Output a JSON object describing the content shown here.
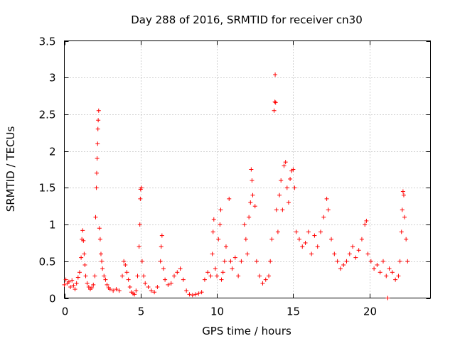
{
  "chart_data": {
    "type": "scatter",
    "title": "Day 288 of 2016, SRMTID for receiver cn30",
    "xlabel": "GPS time / hours",
    "ylabel": "SRMTID / TECUs",
    "xlim": [
      0,
      24
    ],
    "ylim": [
      0,
      3.5
    ],
    "x_ticks": [
      0,
      5,
      10,
      15,
      20
    ],
    "x_tick_labels": [
      "0",
      "5",
      "10",
      "15",
      "20"
    ],
    "y_ticks": [
      0,
      0.5,
      1,
      1.5,
      2,
      2.5,
      3,
      3.5
    ],
    "y_tick_labels": [
      "0",
      "0.5",
      "1",
      "1.5",
      "2",
      "2.5",
      "3",
      "3.5"
    ],
    "grid": true,
    "marker": "+",
    "series": [
      {
        "name": "SRMTID",
        "color": "#ff0000",
        "points": [
          [
            0.0,
            0.18
          ],
          [
            0.1,
            0.25
          ],
          [
            0.2,
            0.2
          ],
          [
            0.3,
            0.22
          ],
          [
            0.4,
            0.15
          ],
          [
            0.5,
            0.24
          ],
          [
            0.6,
            0.17
          ],
          [
            0.7,
            0.12
          ],
          [
            0.8,
            0.2
          ],
          [
            0.9,
            0.28
          ],
          [
            1.0,
            0.35
          ],
          [
            1.1,
            0.55
          ],
          [
            1.15,
            0.8
          ],
          [
            1.2,
            0.92
          ],
          [
            1.25,
            0.78
          ],
          [
            1.3,
            0.6
          ],
          [
            1.35,
            0.45
          ],
          [
            1.4,
            0.3
          ],
          [
            1.5,
            0.2
          ],
          [
            1.6,
            0.15
          ],
          [
            1.7,
            0.12
          ],
          [
            1.8,
            0.14
          ],
          [
            1.9,
            0.18
          ],
          [
            2.0,
            0.3
          ],
          [
            2.05,
            1.1
          ],
          [
            2.1,
            1.5
          ],
          [
            2.12,
            1.7
          ],
          [
            2.15,
            1.9
          ],
          [
            2.18,
            2.1
          ],
          [
            2.2,
            2.3
          ],
          [
            2.22,
            2.42
          ],
          [
            2.25,
            2.55
          ],
          [
            2.3,
            0.95
          ],
          [
            2.35,
            0.8
          ],
          [
            2.4,
            0.6
          ],
          [
            2.45,
            0.5
          ],
          [
            2.5,
            0.4
          ],
          [
            2.6,
            0.3
          ],
          [
            2.7,
            0.25
          ],
          [
            2.8,
            0.18
          ],
          [
            2.9,
            0.14
          ],
          [
            3.0,
            0.12
          ],
          [
            3.2,
            0.1
          ],
          [
            3.4,
            0.12
          ],
          [
            3.6,
            0.1
          ],
          [
            3.8,
            0.3
          ],
          [
            3.9,
            0.5
          ],
          [
            4.0,
            0.45
          ],
          [
            4.1,
            0.35
          ],
          [
            4.2,
            0.25
          ],
          [
            4.3,
            0.15
          ],
          [
            4.4,
            0.08
          ],
          [
            4.5,
            0.06
          ],
          [
            4.6,
            0.05
          ],
          [
            4.7,
            0.1
          ],
          [
            4.8,
            0.3
          ],
          [
            4.9,
            0.7
          ],
          [
            4.95,
            1.0
          ],
          [
            4.98,
            1.35
          ],
          [
            5.0,
            1.48
          ],
          [
            5.05,
            1.5
          ],
          [
            5.1,
            0.5
          ],
          [
            5.2,
            0.3
          ],
          [
            5.3,
            0.2
          ],
          [
            5.5,
            0.15
          ],
          [
            5.7,
            0.1
          ],
          [
            5.9,
            0.08
          ],
          [
            6.1,
            0.15
          ],
          [
            6.3,
            0.5
          ],
          [
            6.35,
            0.7
          ],
          [
            6.4,
            0.85
          ],
          [
            6.5,
            0.4
          ],
          [
            6.6,
            0.25
          ],
          [
            6.8,
            0.18
          ],
          [
            7.0,
            0.2
          ],
          [
            7.2,
            0.3
          ],
          [
            7.4,
            0.35
          ],
          [
            7.6,
            0.4
          ],
          [
            7.8,
            0.25
          ],
          [
            8.0,
            0.1
          ],
          [
            8.2,
            0.05
          ],
          [
            8.4,
            0.04
          ],
          [
            8.6,
            0.05
          ],
          [
            8.8,
            0.06
          ],
          [
            9.0,
            0.08
          ],
          [
            9.2,
            0.25
          ],
          [
            9.4,
            0.35
          ],
          [
            9.6,
            0.3
          ],
          [
            9.7,
            0.6
          ],
          [
            9.75,
            0.9
          ],
          [
            9.8,
            1.07
          ],
          [
            9.9,
            0.4
          ],
          [
            10.0,
            0.3
          ],
          [
            10.1,
            0.8
          ],
          [
            10.2,
            1.0
          ],
          [
            10.25,
            1.2
          ],
          [
            10.3,
            0.25
          ],
          [
            10.4,
            0.35
          ],
          [
            10.5,
            0.5
          ],
          [
            10.6,
            0.7
          ],
          [
            10.8,
            1.35
          ],
          [
            10.9,
            0.5
          ],
          [
            11.0,
            0.4
          ],
          [
            11.2,
            0.55
          ],
          [
            11.4,
            0.3
          ],
          [
            11.6,
            0.5
          ],
          [
            11.8,
            1.0
          ],
          [
            11.9,
            0.8
          ],
          [
            12.0,
            0.6
          ],
          [
            12.1,
            1.1
          ],
          [
            12.2,
            1.3
          ],
          [
            12.25,
            1.75
          ],
          [
            12.3,
            1.6
          ],
          [
            12.35,
            1.4
          ],
          [
            12.5,
            1.25
          ],
          [
            12.6,
            0.5
          ],
          [
            12.8,
            0.3
          ],
          [
            13.0,
            0.2
          ],
          [
            13.2,
            0.25
          ],
          [
            13.4,
            0.3
          ],
          [
            13.5,
            0.5
          ],
          [
            13.6,
            0.8
          ],
          [
            13.75,
            2.55
          ],
          [
            13.8,
            2.67
          ],
          [
            13.82,
            3.04
          ],
          [
            13.85,
            2.66
          ],
          [
            13.9,
            1.2
          ],
          [
            14.0,
            0.9
          ],
          [
            14.1,
            1.4
          ],
          [
            14.2,
            1.6
          ],
          [
            14.3,
            1.2
          ],
          [
            14.4,
            1.8
          ],
          [
            14.5,
            1.85
          ],
          [
            14.6,
            1.5
          ],
          [
            14.7,
            1.3
          ],
          [
            14.8,
            1.62
          ],
          [
            14.9,
            1.73
          ],
          [
            15.0,
            1.75
          ],
          [
            15.1,
            1.5
          ],
          [
            15.2,
            0.9
          ],
          [
            15.4,
            0.8
          ],
          [
            15.6,
            0.7
          ],
          [
            15.8,
            0.75
          ],
          [
            16.0,
            0.9
          ],
          [
            16.2,
            0.6
          ],
          [
            16.4,
            0.85
          ],
          [
            16.6,
            0.7
          ],
          [
            16.8,
            0.9
          ],
          [
            17.0,
            1.1
          ],
          [
            17.2,
            1.35
          ],
          [
            17.3,
            1.2
          ],
          [
            17.5,
            0.8
          ],
          [
            17.7,
            0.6
          ],
          [
            17.9,
            0.5
          ],
          [
            18.1,
            0.4
          ],
          [
            18.3,
            0.45
          ],
          [
            18.5,
            0.5
          ],
          [
            18.7,
            0.6
          ],
          [
            18.9,
            0.7
          ],
          [
            19.1,
            0.55
          ],
          [
            19.3,
            0.65
          ],
          [
            19.5,
            0.8
          ],
          [
            19.7,
            1.0
          ],
          [
            19.8,
            1.05
          ],
          [
            19.9,
            0.6
          ],
          [
            20.1,
            0.5
          ],
          [
            20.3,
            0.4
          ],
          [
            20.5,
            0.45
          ],
          [
            20.7,
            0.35
          ],
          [
            20.9,
            0.5
          ],
          [
            21.1,
            0.3
          ],
          [
            21.2,
            0.0
          ],
          [
            21.3,
            0.4
          ],
          [
            21.5,
            0.35
          ],
          [
            21.7,
            0.25
          ],
          [
            21.9,
            0.3
          ],
          [
            22.0,
            0.5
          ],
          [
            22.1,
            0.9
          ],
          [
            22.15,
            1.2
          ],
          [
            22.2,
            1.45
          ],
          [
            22.25,
            1.4
          ],
          [
            22.3,
            1.1
          ],
          [
            22.4,
            0.8
          ],
          [
            22.5,
            0.5
          ]
        ]
      }
    ]
  }
}
